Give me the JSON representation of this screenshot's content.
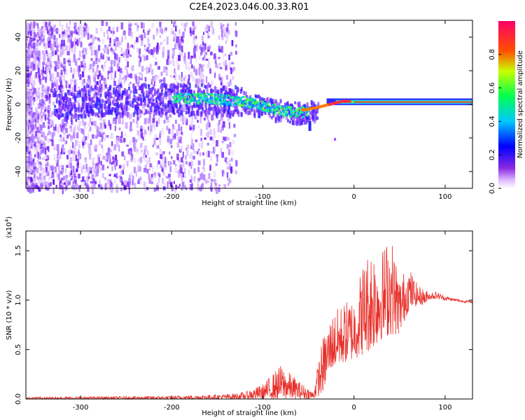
{
  "title": "C2E4.2023.046.00.33.R01",
  "chart_data": [
    {
      "type": "heatmap",
      "title": "C2E4.2023.046.00.33.R01",
      "xlabel": "Height of straight line (km)",
      "ylabel": "Frequency (Hz)",
      "xlim": [
        -360,
        130
      ],
      "ylim": [
        -50,
        50
      ],
      "x_ticks": [
        -300,
        -200,
        -100,
        0,
        100
      ],
      "y_ticks": [
        -40,
        -20,
        0,
        20,
        40
      ],
      "colorbar": {
        "label": "Normalized spectral amplitude",
        "range": [
          0.0,
          1.0
        ],
        "ticks": [
          "0.0",
          "0.2",
          "0.4",
          "0.6",
          "0.8"
        ],
        "colormap": [
          "#ffffff",
          "#7f00ff",
          "#0000ff",
          "#00c8ff",
          "#00ff50",
          "#c8ff00",
          "#ff5000",
          "#ff0060"
        ]
      },
      "ridge": {
        "description_points_x": [
          -300,
          -220,
          -160,
          -120,
          -90,
          -70,
          -55,
          -45,
          -30,
          -15,
          0,
          20,
          50,
          80,
          110,
          130
        ],
        "description_points_y": [
          3,
          4,
          4,
          2,
          -2,
          -4,
          -4,
          -3,
          -1,
          1,
          1,
          1,
          1,
          1,
          1,
          1
        ]
      },
      "grid": false
    },
    {
      "type": "line",
      "xlabel": "Height of straight line (km)",
      "ylabel": "SNR (10 * v/v)",
      "y_multiplier": "(x10",
      "y_multiplier_exp": "4",
      "xlim": [
        -360,
        130
      ],
      "ylim": [
        0,
        17000
      ],
      "x_ticks": [
        -300,
        -200,
        -100,
        0,
        100
      ],
      "y_ticks": [
        "0.0",
        "0.5",
        "1.0",
        "1.5"
      ],
      "series": [
        {
          "color": "#e8302a",
          "envelope_x": [
            -360,
            -200,
            -140,
            -120,
            -100,
            -80,
            -60,
            -45,
            -35,
            -25,
            -15,
            0,
            10,
            20,
            30,
            40,
            50,
            60,
            70,
            80,
            90,
            100,
            110,
            120,
            130
          ],
          "envelope_low": [
            0,
            0,
            0,
            0,
            0,
            0,
            0,
            0,
            500,
            3000,
            3500,
            4000,
            4500,
            5000,
            6000,
            6500,
            6500,
            9000,
            9500,
            9600,
            9600,
            9700,
            9700,
            9600,
            9600
          ],
          "envelope_high": [
            200,
            300,
            500,
            700,
            1500,
            3500,
            1800,
            800,
            6000,
            8500,
            9500,
            10500,
            14000,
            16000,
            15000,
            17000,
            12500,
            13500,
            11500,
            11000,
            11200,
            10600,
            10300,
            10100,
            10000
          ]
        }
      ],
      "grid": false
    }
  ]
}
